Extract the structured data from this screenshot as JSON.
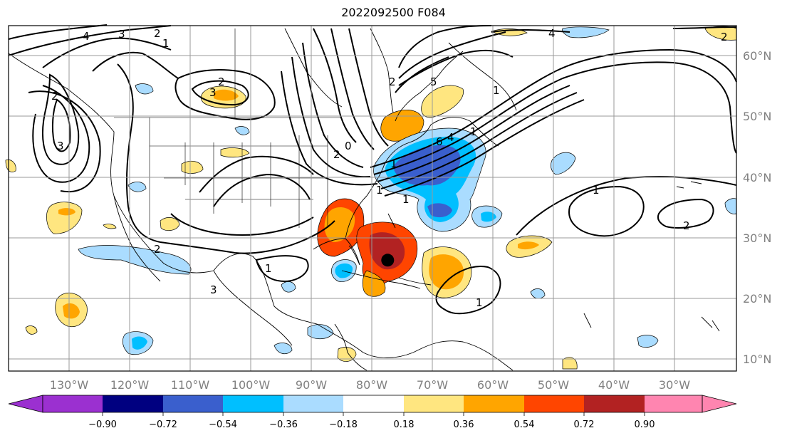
{
  "title": "2022092500 F084",
  "map": {
    "projection": "PlateCarree",
    "lon_range": [
      -145,
      -25
    ],
    "lat_range": [
      8,
      65
    ],
    "grid": true,
    "lon_ticks": [
      "130°W",
      "120°W",
      "110°W",
      "100°W",
      "90°W",
      "80°W",
      "70°W",
      "60°W",
      "50°W",
      "40°W",
      "30°W"
    ],
    "lat_ticks": [
      "60°N",
      "50°N",
      "40°N",
      "30°N",
      "20°N",
      "10°N"
    ],
    "contour_labels": [
      "4",
      "3",
      "2",
      "1",
      "2",
      "3",
      "2",
      "4",
      "2",
      "3",
      "1",
      "3",
      "2",
      "1",
      "2",
      "1",
      "6",
      "5",
      "4",
      "1",
      "1",
      "2",
      "1",
      "2",
      "1",
      "1",
      "0"
    ],
    "marker": {
      "name": "storm-center",
      "lon": -82.5,
      "lat": 26.3
    }
  },
  "colorbar": {
    "ticks": [
      "−0.90",
      "−0.72",
      "−0.54",
      "−0.36",
      "−0.18",
      "0.18",
      "0.36",
      "0.54",
      "0.72",
      "0.90"
    ],
    "colors": [
      "#9b30d0",
      "#000080",
      "#3a5fcd",
      "#00bfff",
      "#aadcff",
      "#ffffff",
      "#ffe680",
      "#ffa500",
      "#ff4500",
      "#b22222",
      "#ff85b0"
    ],
    "extend": "both"
  }
}
